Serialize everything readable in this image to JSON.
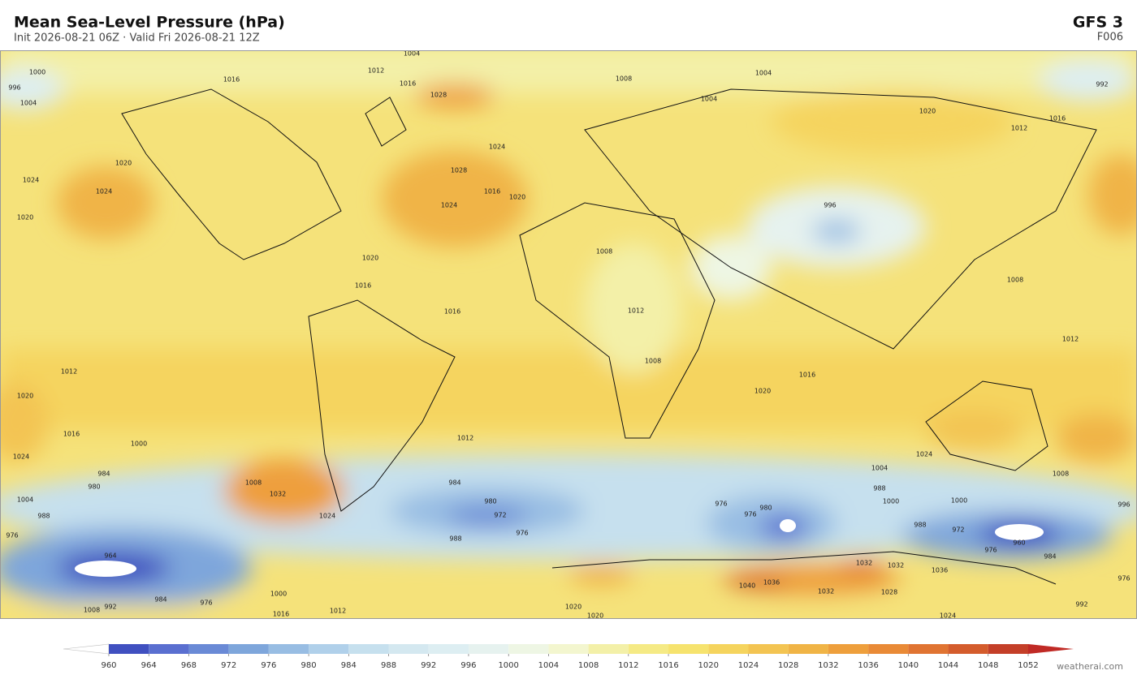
{
  "header": {
    "title": "Mean Sea-Level Pressure  (hPa)",
    "subtitle": "Init 2026-08-21 06Z   ·   Valid Fri 2026-08-21 12Z",
    "model": "GFS  3",
    "forecast_hour": "F006"
  },
  "isobar_labels": [
    1004,
    1012,
    1016,
    1016,
    1028,
    1008,
    1004,
    1004,
    1020,
    1012,
    1016,
    992,
    1000,
    1004,
    996,
    1024,
    1020,
    1020,
    1024,
    1024,
    1028,
    1016,
    1020,
    1024,
    1020,
    1016,
    1008,
    1012,
    1016,
    1008,
    996,
    1008,
    1012,
    1016,
    1020,
    1012,
    1020,
    1016,
    1024,
    1000,
    984,
    980,
    1008,
    1032,
    1024,
    1012,
    984,
    980,
    972,
    976,
    988,
    1004,
    988,
    1000,
    1000,
    1008,
    1024,
    976,
    980,
    976,
    988,
    972,
    960,
    976,
    984,
    996,
    1032,
    1032,
    1036,
    1028,
    1032,
    1036,
    1040,
    1020,
    1020,
    1016,
    1012,
    1008,
    992,
    984,
    976,
    1000,
    964,
    1004,
    988,
    976,
    992,
    976,
    1024
  ],
  "colorbar": {
    "ticks": [
      960,
      964,
      968,
      972,
      976,
      980,
      984,
      988,
      992,
      996,
      1000,
      1004,
      1008,
      1012,
      1016,
      1020,
      1024,
      1028,
      1032,
      1036,
      1040,
      1044,
      1048,
      1052
    ],
    "colors": [
      "#4050c0",
      "#5a6fd0",
      "#6a8ad6",
      "#7ea6db",
      "#98bde3",
      "#b0d0ea",
      "#c6e0ee",
      "#d4e8f0",
      "#ddeef2",
      "#e6f2ef",
      "#eef6e4",
      "#f3f6cf",
      "#f3f0a8",
      "#f5ea85",
      "#f6e36e",
      "#f5d45e",
      "#f3c452",
      "#f0b446",
      "#ee9f3c",
      "#e98a36",
      "#e07432",
      "#d45c2c",
      "#c43f28"
    ],
    "under_color": "#ffffff",
    "over_color": "#c02a25"
  },
  "watermark": "weatherai.com"
}
